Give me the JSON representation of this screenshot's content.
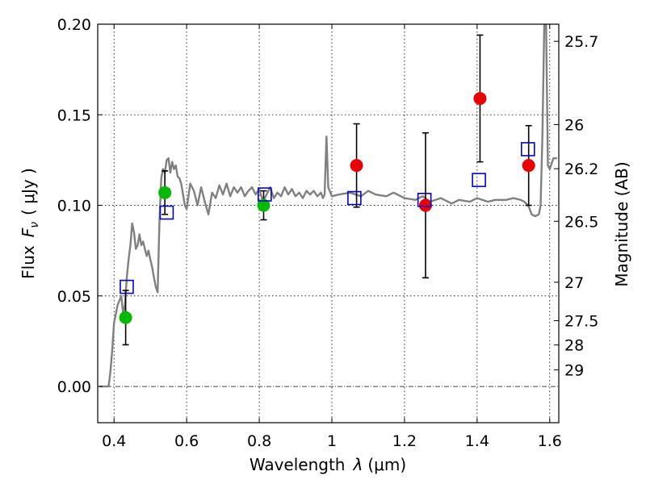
{
  "chart_data": {
    "type": "scatter",
    "xlabel": "Wavelength",
    "xlabel_symbol": "λ",
    "xlabel_unit": "(μm)",
    "ylabel": "Flux",
    "ylabel_symbol": "F",
    "ylabel_subscript": "ν",
    "ylabel_unit": "( μJy )",
    "y2label": "Magnitude (AB)",
    "xlim": [
      0.355,
      1.625
    ],
    "ylim": [
      -0.02,
      0.2
    ],
    "grid": true,
    "x_ticks": [
      0.4,
      0.6,
      0.8,
      1.0,
      1.2,
      1.4,
      1.6
    ],
    "x_tick_labels": [
      "0.4",
      "0.6",
      "0.8",
      "1",
      "1.2",
      "1.4",
      "1.6"
    ],
    "y_ticks": [
      0.0,
      0.05,
      0.1,
      0.15,
      0.2
    ],
    "y_tick_labels": [
      "0.00",
      "0.05",
      "0.10",
      "0.15",
      "0.20"
    ],
    "mag_ticks": [
      25.7,
      26,
      26.2,
      26.5,
      27,
      27.5,
      28,
      29
    ],
    "mag_tick_labels": [
      "25.7",
      "26",
      "26.2",
      "26.5",
      "27",
      "27.5",
      "28",
      "29"
    ],
    "colors": {
      "model_line": "#808080",
      "green_points": "#00bb00",
      "red_points": "#ee0000",
      "model_squares": "#0000dd",
      "errorbars": "#000000"
    },
    "series": [
      {
        "kind": "line",
        "x": [
          0.36,
          0.375,
          0.385,
          0.39,
          0.395,
          0.4,
          0.41,
          0.42,
          0.425,
          0.43,
          0.435,
          0.44,
          0.445,
          0.45,
          0.455,
          0.46,
          0.465,
          0.47,
          0.475,
          0.48,
          0.485,
          0.49,
          0.495,
          0.5,
          0.505,
          0.51,
          0.515,
          0.52,
          0.525,
          0.53,
          0.535,
          0.54,
          0.545,
          0.55,
          0.555,
          0.56,
          0.565,
          0.57,
          0.575,
          0.58,
          0.585,
          0.59,
          0.595,
          0.6,
          0.61,
          0.62,
          0.63,
          0.64,
          0.65,
          0.66,
          0.67,
          0.68,
          0.69,
          0.7,
          0.71,
          0.72,
          0.73,
          0.74,
          0.75,
          0.76,
          0.77,
          0.78,
          0.79,
          0.8,
          0.81,
          0.82,
          0.83,
          0.84,
          0.85,
          0.86,
          0.87,
          0.88,
          0.89,
          0.9,
          0.91,
          0.92,
          0.93,
          0.94,
          0.95,
          0.96,
          0.97,
          0.975,
          0.98,
          0.985,
          0.99,
          1.0,
          1.02,
          1.05,
          1.08,
          1.1,
          1.12,
          1.15,
          1.17,
          1.2,
          1.23,
          1.25,
          1.27,
          1.3,
          1.33,
          1.35,
          1.38,
          1.4,
          1.43,
          1.45,
          1.48,
          1.5,
          1.52,
          1.53,
          1.54,
          1.545,
          1.55,
          1.56,
          1.57,
          1.575,
          1.58,
          1.585,
          1.59,
          1.595,
          1.6,
          1.61,
          1.62
        ],
        "y": [
          0.0,
          0.0,
          0.0,
          0.008,
          0.02,
          0.035,
          0.045,
          0.05,
          0.04,
          0.045,
          0.06,
          0.07,
          0.078,
          0.09,
          0.085,
          0.076,
          0.078,
          0.084,
          0.078,
          0.08,
          0.076,
          0.072,
          0.075,
          0.07,
          0.066,
          0.06,
          0.055,
          0.052,
          0.09,
          0.115,
          0.12,
          0.118,
          0.125,
          0.126,
          0.118,
          0.124,
          0.12,
          0.122,
          0.116,
          0.115,
          0.112,
          0.106,
          0.1,
          0.098,
          0.112,
          0.108,
          0.1,
          0.11,
          0.102,
          0.095,
          0.107,
          0.104,
          0.111,
          0.106,
          0.112,
          0.105,
          0.11,
          0.107,
          0.11,
          0.105,
          0.108,
          0.11,
          0.106,
          0.109,
          0.102,
          0.106,
          0.11,
          0.104,
          0.107,
          0.105,
          0.11,
          0.106,
          0.109,
          0.105,
          0.107,
          0.104,
          0.108,
          0.106,
          0.108,
          0.105,
          0.107,
          0.104,
          0.106,
          0.138,
          0.11,
          0.105,
          0.106,
          0.107,
          0.105,
          0.108,
          0.106,
          0.105,
          0.107,
          0.104,
          0.103,
          0.105,
          0.102,
          0.104,
          0.101,
          0.103,
          0.102,
          0.104,
          0.102,
          0.103,
          0.103,
          0.104,
          0.103,
          0.102,
          0.1,
          0.098,
          0.095,
          0.094,
          0.095,
          0.1,
          0.14,
          0.2,
          0.2,
          0.122,
          0.12,
          0.126,
          0.126
        ]
      },
      {
        "kind": "errorbar",
        "marker": "circle",
        "color_key": "green_points",
        "x": [
          0.432,
          0.54,
          0.812
        ],
        "y": [
          0.038,
          0.107,
          0.1
        ],
        "yerr": [
          0.015,
          0.012,
          0.008
        ]
      },
      {
        "kind": "errorbar",
        "marker": "circle",
        "color_key": "red_points",
        "x": [
          1.068,
          1.258,
          1.408,
          1.542
        ],
        "y": [
          0.122,
          0.1,
          0.159,
          0.122
        ],
        "yerr": [
          0.023,
          0.04,
          0.035,
          0.022
        ]
      },
      {
        "kind": "scatter",
        "marker": "square-open",
        "color_key": "model_squares",
        "x": [
          0.435,
          0.545,
          0.815,
          1.062,
          1.255,
          1.405,
          1.54
        ],
        "y": [
          0.055,
          0.096,
          0.106,
          0.104,
          0.103,
          0.114,
          0.131
        ]
      }
    ]
  }
}
